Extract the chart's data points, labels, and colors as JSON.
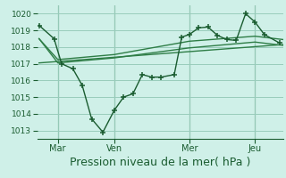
{
  "background_color": "#cff0e8",
  "grid_color": "#99ccbb",
  "line_color_dark": "#1a5c30",
  "line_color_mid": "#2e7d46",
  "ylim": [
    1012.5,
    1020.5
  ],
  "yticks": [
    1013,
    1014,
    1015,
    1016,
    1017,
    1018,
    1019,
    1020
  ],
  "xlabel": "Pression niveau de la mer( hPa )",
  "xlabel_fontsize": 9,
  "xtick_labels": [
    "| Mar",
    "| Ven",
    "| Mer",
    "| Jeu"
  ],
  "xtick_positions": [
    1.0,
    4.0,
    8.0,
    11.5
  ],
  "xlim": [
    -0.1,
    13.0
  ],
  "series_main_x": [
    0.0,
    0.8,
    1.2,
    1.8,
    2.3,
    2.8,
    3.4,
    4.0,
    4.5,
    5.0,
    5.5,
    6.0,
    6.5,
    7.2,
    7.6,
    8.0,
    8.5,
    9.0,
    9.5,
    10.0,
    10.5,
    11.0,
    11.5,
    12.0,
    12.8
  ],
  "series_main_y": [
    1019.3,
    1018.5,
    1017.0,
    1016.7,
    1015.7,
    1013.7,
    1012.9,
    1014.2,
    1015.0,
    1015.2,
    1016.35,
    1016.2,
    1016.2,
    1016.35,
    1018.6,
    1018.75,
    1019.15,
    1019.2,
    1018.7,
    1018.45,
    1018.4,
    1020.0,
    1019.5,
    1018.75,
    1018.25
  ],
  "series_trend1_x": [
    0.0,
    13.0
  ],
  "series_trend1_y": [
    1017.05,
    1018.15
  ],
  "series_trend2_x": [
    0.0,
    1.0,
    4.0,
    8.0,
    11.5,
    13.0
  ],
  "series_trend2_y": [
    1018.5,
    1017.25,
    1017.55,
    1018.35,
    1018.65,
    1018.45
  ],
  "series_trend3_x": [
    0.0,
    1.0,
    4.0,
    8.0,
    11.5,
    13.0
  ],
  "series_trend3_y": [
    1018.5,
    1017.05,
    1017.35,
    1017.95,
    1018.3,
    1018.1
  ],
  "vline_positions": [
    1.0,
    4.0,
    8.0,
    11.5
  ],
  "vline_color": "#2e7d46"
}
